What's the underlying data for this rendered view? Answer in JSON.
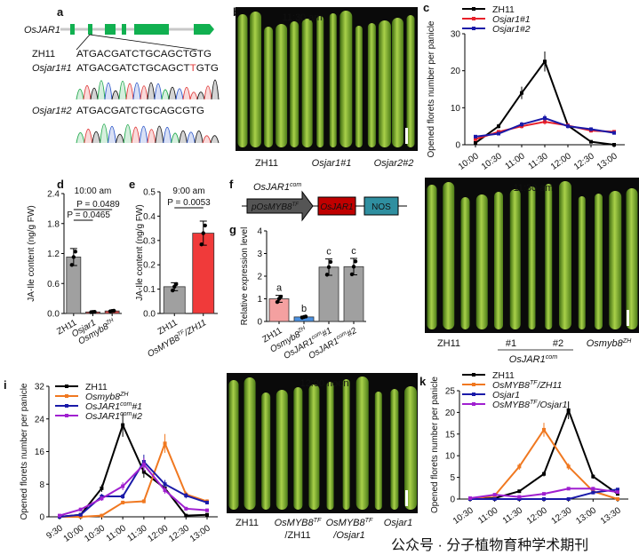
{
  "panel_letters": [
    "a",
    "b",
    "c",
    "d",
    "e",
    "f",
    "g",
    "h",
    "i",
    "j",
    "k"
  ],
  "panel_a": {
    "gene": "OsJAR1",
    "rows": [
      {
        "label": "ZH11",
        "italic": false,
        "seq": "ATGACGATCTGCAGCTGTG"
      },
      {
        "label": "Osjar1#1",
        "italic": true,
        "seq_pre": "ATGACGATCTGCAGCT",
        "seq_hl": "T",
        "seq_post": "GTG"
      },
      {
        "label": "Osjar1#2",
        "italic": true,
        "seq": "ATGACGATCTGCAGCGTG"
      }
    ],
    "base_colors": {
      "A": "#1ea84a",
      "C": "#2a55c8",
      "G": "#111111",
      "T": "#e03a3a"
    },
    "highlight_color": "#e03a3a",
    "exon_color": "#11b050"
  },
  "panel_b": {
    "time": "11:30 am",
    "labels": [
      {
        "t": "ZH11",
        "it": false
      },
      {
        "t": "Osjar1#1",
        "it": true
      },
      {
        "t": "Osjar2#2",
        "it": true
      }
    ]
  },
  "panel_f": {
    "title": "OsJAR1",
    "title_sup": "com",
    "promoter": "pOsMYB8",
    "promoter_sup": "TF",
    "cds": "OsJAR1",
    "terminator": "NOS",
    "colors": {
      "promoter": "#555555",
      "cds": "#c00000",
      "terminator": "#2f8fa0"
    }
  },
  "panel_h": {
    "time": "11:30 am",
    "labels": [
      {
        "t": "ZH11"
      },
      {
        "t": "#1"
      },
      {
        "t": "#2"
      },
      {
        "t": "Osmyb8",
        "sup": "ZH"
      }
    ],
    "group": {
      "t": "OsJAR1",
      "sup": "com"
    }
  },
  "panel_j": {
    "time": "12:00 noon",
    "labels": [
      {
        "t": "ZH11"
      },
      {
        "t": "OsMYB8",
        "sup": "TF",
        "line2": "/ZH11"
      },
      {
        "t": "OsMYB8",
        "sup": "TF",
        "line2": "/Osjar1"
      },
      {
        "t": "Osjar1"
      }
    ]
  },
  "watermark": "公众号 · 分子植物育种学术期刊",
  "chart_data": [
    {
      "panel": "c",
      "type": "line",
      "ylabel": "Opened florets number per panicle",
      "x": [
        "10:00",
        "10:30",
        "11:00",
        "11:30",
        "12:00",
        "12:30",
        "13:00"
      ],
      "ylim": [
        0,
        30
      ],
      "yticks": [
        0,
        10,
        20,
        30
      ],
      "legend": "top-left",
      "series": [
        {
          "name": "ZH11",
          "color": "#000000",
          "values": [
            0.5,
            5,
            14,
            22.5,
            5.2,
            0.8,
            0
          ]
        },
        {
          "name": "Osjar1#1",
          "italic": true,
          "color": "#e8202a",
          "values": [
            1.5,
            3.5,
            5,
            6.2,
            5.2,
            3.8,
            3.5
          ]
        },
        {
          "name": "Osjar1#2",
          "italic": true,
          "color": "#1a1aa8",
          "values": [
            2.2,
            3,
            5.5,
            7.2,
            5,
            4.2,
            3.2
          ]
        }
      ]
    },
    {
      "panel": "d",
      "type": "bar",
      "title": "10:00 am",
      "ylabel": "JA-Ile content (ng/g FW)",
      "categories": [
        {
          "t": "ZH11"
        },
        {
          "t": "Osjar1"
        },
        {
          "t": "Osmyb8",
          "sup": "ZH"
        }
      ],
      "values": [
        1.13,
        0.03,
        0.05
      ],
      "colors": [
        "#a0a0a0",
        "#d94a4a",
        "#d94a4a"
      ],
      "ylim": [
        0,
        2.4
      ],
      "yticks": [
        "0.0",
        "0.6",
        "1.2",
        "1.8",
        "2.4"
      ],
      "annotations": [
        "P = 0.0465",
        "P = 0.0489"
      ]
    },
    {
      "panel": "e",
      "type": "bar",
      "title": "9:00 am",
      "ylabel": "JA-Ile content (ng/g FW)",
      "categories": [
        {
          "t": "ZH11"
        },
        {
          "t": "OsMYB8",
          "sup": "TF",
          "s": "/ZH11"
        }
      ],
      "values": [
        0.11,
        0.33
      ],
      "colors": [
        "#a0a0a0",
        "#f03a3a"
      ],
      "ylim": [
        0,
        0.5
      ],
      "yticks": [
        "0.0",
        "0.1",
        "0.2",
        "0.3",
        "0.4",
        "0.5"
      ],
      "annotations": [
        "P = 0.0053"
      ]
    },
    {
      "panel": "g",
      "type": "bar",
      "ylabel": "Relative expression level",
      "categories": [
        {
          "t": "ZH11"
        },
        {
          "t": "Osmyb8",
          "sup": "ZH"
        },
        {
          "t": "OsJAR1",
          "sup": "com",
          "s": "#1"
        },
        {
          "t": "OsJAR1",
          "sup": "com",
          "s": "#2"
        }
      ],
      "values": [
        1.0,
        0.2,
        2.4,
        2.42
      ],
      "colors": [
        "#f4a0a0",
        "#4a90e0",
        "#a0a0a0",
        "#a0a0a0"
      ],
      "letters": [
        "a",
        "b",
        "c",
        "c"
      ],
      "ylim": [
        0,
        4
      ],
      "yticks": [
        "0",
        "1",
        "2",
        "3",
        "4"
      ]
    },
    {
      "panel": "i",
      "type": "line",
      "ylabel": "Opened florets number per panicle",
      "x": [
        "9:30",
        "10:00",
        "10:30",
        "11:00",
        "11:30",
        "12:00",
        "12:30",
        "13:00"
      ],
      "ylim": [
        0,
        32
      ],
      "yticks": [
        0,
        8,
        16,
        24,
        32
      ],
      "legend": "top-left",
      "series": [
        {
          "name": "ZH11",
          "color": "#000000",
          "values": [
            0,
            0.5,
            7,
            22.5,
            11,
            7,
            0.3,
            0.5
          ]
        },
        {
          "name": "Osmyb8",
          "sup": "ZH",
          "color": "#f07820",
          "values": [
            0,
            0,
            0.3,
            3.5,
            3.8,
            18,
            5.5,
            3.8
          ]
        },
        {
          "name": "OsJAR1",
          "sup": "com",
          "suffix": "#1",
          "color": "#1a1aa8",
          "values": [
            0,
            0.5,
            5,
            5,
            13.5,
            8,
            5.2,
            3.5
          ]
        },
        {
          "name": "OsJAR1",
          "sup": "com",
          "suffix": "#2",
          "color": "#a020d0",
          "values": [
            0.3,
            1.8,
            4.5,
            7.5,
            12.8,
            6.5,
            2,
            1.6
          ]
        }
      ]
    },
    {
      "panel": "k",
      "type": "line",
      "ylabel": "Opened florets number per panicle",
      "x": [
        "10:30",
        "11:00",
        "11:30",
        "12:00",
        "12:30",
        "13:00",
        "13:30"
      ],
      "ylim": [
        0,
        25
      ],
      "yticks": [
        0,
        5,
        10,
        15,
        20,
        25
      ],
      "legend": "top-left",
      "series": [
        {
          "name": "ZH11",
          "color": "#000000",
          "values": [
            0,
            0.2,
            1.8,
            5.8,
            20.5,
            5.2,
            1.2
          ]
        },
        {
          "name": "OsMYB8",
          "sup": "TF",
          "suffix": "/ZH11",
          "color": "#f07820",
          "values": [
            0,
            0.8,
            7.5,
            16,
            7.5,
            1.8,
            0
          ]
        },
        {
          "name": "Osjar1",
          "color": "#1a1aa8",
          "values": [
            0,
            0,
            0,
            0,
            0,
            1.5,
            2.2
          ]
        },
        {
          "name": "OsMYB8",
          "sup": "TF",
          "suffix": "/Osjar1",
          "color": "#a020d0",
          "values": [
            0.2,
            1,
            0.5,
            1.2,
            2.4,
            2.4,
            1.6
          ]
        }
      ]
    }
  ]
}
